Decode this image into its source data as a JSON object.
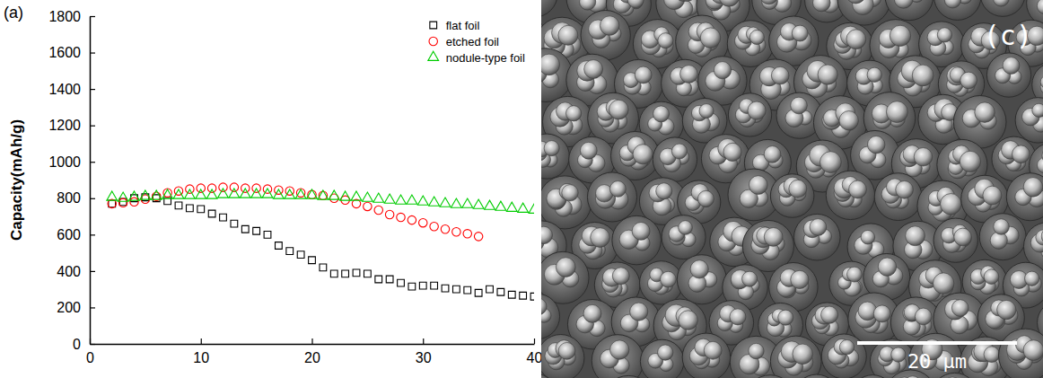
{
  "chart_data": {
    "type": "scatter",
    "annotations": [
      "(a)"
    ],
    "y_label": "Capacity(mAh/g)",
    "x": [
      2,
      3,
      4,
      5,
      6,
      7,
      8,
      9,
      10,
      11,
      12,
      13,
      14,
      15,
      16,
      17,
      18,
      19,
      20,
      21,
      22,
      23,
      24,
      25,
      26,
      27,
      28,
      29,
      30,
      31,
      32,
      33,
      34,
      35,
      36,
      37,
      38,
      39,
      40
    ],
    "series": [
      {
        "name": "flat foil",
        "color": "#000000",
        "marker": "square",
        "values": [
          770,
          780,
          800,
          805,
          800,
          785,
          760,
          745,
          740,
          715,
          695,
          660,
          630,
          620,
          600,
          540,
          510,
          490,
          460,
          420,
          385,
          385,
          390,
          385,
          355,
          355,
          335,
          315,
          320,
          320,
          305,
          300,
          295,
          280,
          300,
          285,
          270,
          265,
          260
        ]
      },
      {
        "name": "etched foil",
        "color": "#ff0000",
        "marker": "circle",
        "values": [
          770,
          775,
          780,
          795,
          810,
          830,
          840,
          850,
          855,
          855,
          860,
          860,
          855,
          855,
          850,
          845,
          840,
          830,
          820,
          815,
          800,
          790,
          770,
          755,
          735,
          710,
          695,
          680,
          665,
          645,
          630,
          615,
          605,
          590,
          null,
          null,
          null,
          null,
          null
        ]
      },
      {
        "name": "nodule-type foil",
        "color": "#00cc00",
        "marker": "triangle",
        "values": [
          805,
          800,
          805,
          810,
          810,
          815,
          815,
          815,
          815,
          815,
          820,
          820,
          820,
          820,
          820,
          815,
          815,
          815,
          815,
          810,
          810,
          805,
          805,
          800,
          795,
          790,
          785,
          785,
          780,
          775,
          770,
          765,
          765,
          760,
          755,
          750,
          745,
          740,
          735
        ]
      }
    ],
    "xlim": [
      0,
      40
    ],
    "xticks": [
      0,
      10,
      20,
      30,
      40
    ],
    "ylim": [
      0,
      1800
    ],
    "yticks": [
      0,
      200,
      400,
      600,
      800,
      1000,
      1200,
      1400,
      1600,
      1800
    ],
    "legend": "top-right",
    "grid": false
  },
  "micrograph": {
    "label": "(c)",
    "scale_bar": "20 μm"
  }
}
